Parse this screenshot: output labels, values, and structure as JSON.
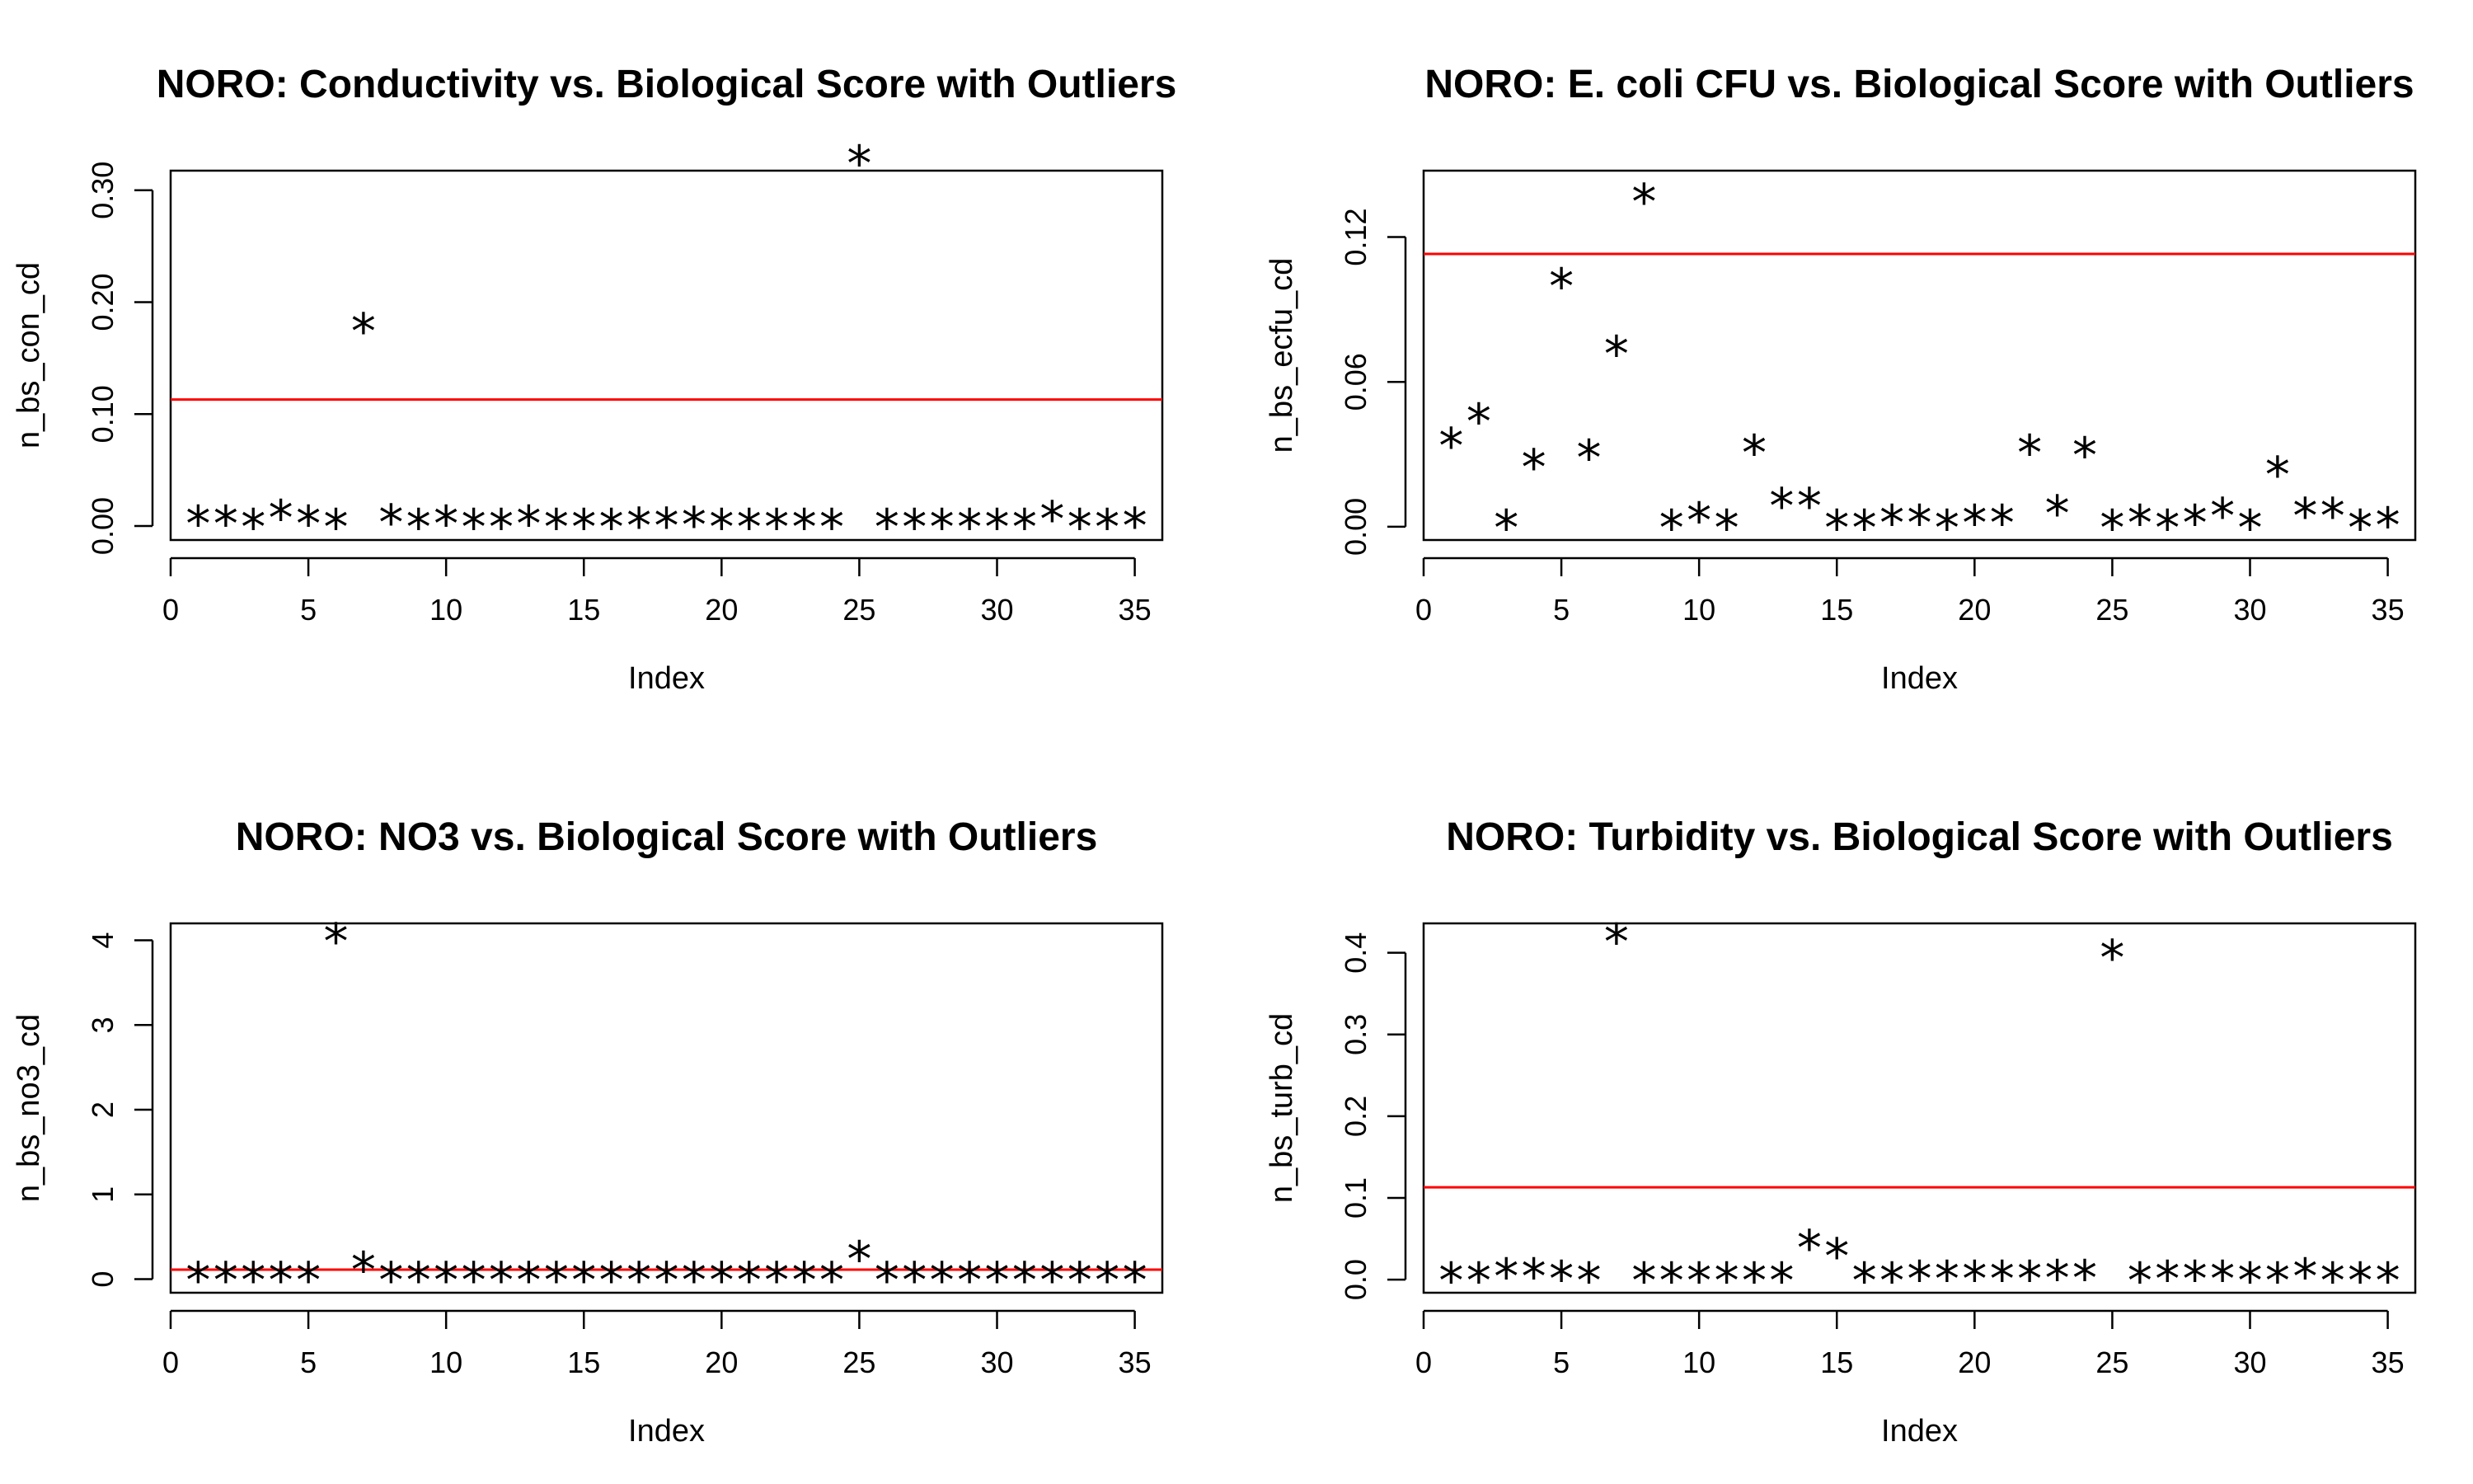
{
  "chart_data": [
    {
      "type": "scatter",
      "title": "NORO: Conductivity vs. Biological Score with Outliers",
      "xlabel": "Index",
      "ylabel": "n_bs_con_cd",
      "marker": "*",
      "xlim": [
        0,
        36
      ],
      "ylim": [
        -0.0125,
        0.3175
      ],
      "xticks": [
        0,
        5,
        10,
        15,
        20,
        25,
        30,
        35
      ],
      "yticks": [
        0.0,
        0.1,
        0.2,
        0.3
      ],
      "ytick_labels": [
        "0.00",
        "0.10",
        "0.20",
        "0.30"
      ],
      "threshold": 0.113,
      "threshold_color": "#ff0000",
      "x": [
        1,
        2,
        3,
        4,
        5,
        6,
        7,
        8,
        9,
        10,
        11,
        12,
        13,
        14,
        15,
        16,
        17,
        18,
        19,
        20,
        21,
        22,
        23,
        24,
        25,
        26,
        27,
        28,
        29,
        30,
        31,
        32,
        33,
        34,
        35
      ],
      "y": [
        0.003,
        0.003,
        0.0,
        0.008,
        0.003,
        0.0,
        0.175,
        0.004,
        0.0,
        0.003,
        0.0,
        0.0,
        0.003,
        0.0,
        0.0,
        0.0,
        0.001,
        0.001,
        0.002,
        0.0,
        0.0,
        0.0,
        0.0,
        0.0,
        0.325,
        0.0,
        0.0,
        0.0,
        0.0,
        0.0,
        0.0,
        0.007,
        0.0,
        0.0,
        0.001
      ]
    },
    {
      "type": "scatter",
      "title": "NORO: E. coli CFU vs. Biological Score with Outliers",
      "xlabel": "Index",
      "ylabel": "n_bs_ecfu_cd",
      "marker": "*",
      "xlim": [
        0,
        36
      ],
      "ylim": [
        -0.0055,
        0.1475
      ],
      "xticks": [
        0,
        5,
        10,
        15,
        20,
        25,
        30,
        35
      ],
      "yticks": [
        0.0,
        0.06,
        0.12
      ],
      "ytick_labels": [
        "0.00",
        "0.06",
        "0.12"
      ],
      "threshold": 0.113,
      "threshold_color": "#ff0000",
      "x": [
        1,
        2,
        3,
        4,
        5,
        6,
        7,
        8,
        9,
        10,
        11,
        12,
        13,
        14,
        15,
        16,
        17,
        18,
        19,
        20,
        21,
        22,
        23,
        24,
        25,
        26,
        27,
        28,
        29,
        30,
        31,
        32,
        33,
        34,
        35
      ],
      "y": [
        0.034,
        0.044,
        0.0,
        0.025,
        0.1,
        0.029,
        0.072,
        0.135,
        0.0,
        0.003,
        0.0,
        0.031,
        0.009,
        0.009,
        0.0,
        0.0,
        0.002,
        0.002,
        0.0,
        0.002,
        0.002,
        0.031,
        0.006,
        0.03,
        0.0,
        0.002,
        0.0,
        0.002,
        0.005,
        0.0,
        0.022,
        0.005,
        0.005,
        0.0,
        0.001
      ]
    },
    {
      "type": "scatter",
      "title": "NORO: NO3 vs. Biological Score with Outliers",
      "xlabel": "Index",
      "ylabel": "n_bs_no3_cd",
      "marker": "*",
      "xlim": [
        0,
        36
      ],
      "ylim": [
        -0.16,
        4.2
      ],
      "xticks": [
        0,
        5,
        10,
        15,
        20,
        25,
        30,
        35
      ],
      "yticks": [
        0,
        1,
        2,
        3,
        4
      ],
      "ytick_labels": [
        "0",
        "1",
        "2",
        "3",
        "4"
      ],
      "threshold": 0.113,
      "threshold_color": "#ff0000",
      "x": [
        1,
        2,
        3,
        4,
        5,
        6,
        7,
        8,
        9,
        10,
        11,
        12,
        13,
        14,
        15,
        16,
        17,
        18,
        19,
        20,
        21,
        22,
        23,
        24,
        25,
        26,
        27,
        28,
        29,
        30,
        31,
        32,
        33,
        34,
        35
      ],
      "y": [
        0.0,
        0.0,
        0.0,
        0.0,
        0.0,
        4.0,
        0.12,
        0.0,
        0.0,
        0.0,
        0.0,
        0.0,
        0.0,
        0.0,
        0.0,
        0.0,
        0.0,
        0.0,
        0.0,
        0.0,
        0.0,
        0.0,
        0.0,
        0.0,
        0.25,
        0.0,
        0.0,
        0.0,
        0.0,
        0.0,
        0.0,
        0.0,
        0.0,
        0.0,
        0.0
      ]
    },
    {
      "type": "scatter",
      "title": "NORO: Turbidity vs. Biological Score with Outliers",
      "xlabel": "Index",
      "ylabel": "n_bs_turb_cd",
      "marker": "*",
      "xlim": [
        0,
        36
      ],
      "ylim": [
        -0.016,
        0.436
      ],
      "xticks": [
        0,
        5,
        10,
        15,
        20,
        25,
        30,
        35
      ],
      "yticks": [
        0.0,
        0.1,
        0.2,
        0.3,
        0.4
      ],
      "ytick_labels": [
        "0.0",
        "0.1",
        "0.2",
        "0.3",
        "0.4"
      ],
      "threshold": 0.113,
      "threshold_color": "#ff0000",
      "x": [
        1,
        2,
        3,
        4,
        5,
        6,
        7,
        8,
        9,
        10,
        11,
        12,
        13,
        14,
        15,
        16,
        17,
        18,
        19,
        20,
        21,
        22,
        23,
        24,
        25,
        26,
        27,
        28,
        29,
        30,
        31,
        32,
        33,
        34,
        35
      ],
      "y": [
        0.0,
        0.0,
        0.005,
        0.005,
        0.002,
        0.0,
        0.415,
        0.0,
        0.0,
        0.0,
        0.0,
        0.0,
        0.0,
        0.04,
        0.03,
        0.0,
        0.0,
        0.002,
        0.002,
        0.002,
        0.002,
        0.002,
        0.003,
        0.003,
        0.395,
        0.0,
        0.002,
        0.002,
        0.002,
        0.0,
        0.0,
        0.005,
        0.0,
        0.0,
        0.0
      ]
    }
  ]
}
